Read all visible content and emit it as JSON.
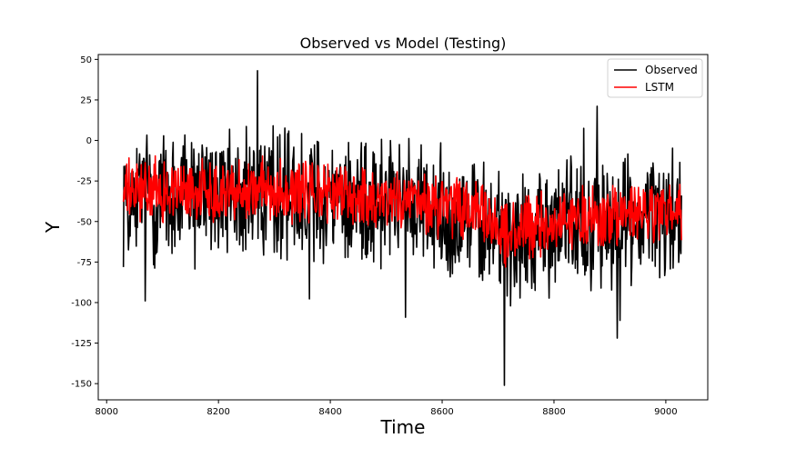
{
  "chart_data": {
    "type": "line",
    "title": "Observed vs Model (Testing)",
    "xlabel": "Time",
    "ylabel": "Y",
    "xlim": [
      7985,
      9075
    ],
    "ylim": [
      -160,
      53
    ],
    "x_ticks": [
      8000,
      8200,
      8400,
      8600,
      8800,
      9000
    ],
    "y_ticks": [
      50,
      25,
      0,
      -25,
      -50,
      -75,
      -100,
      -125,
      -150
    ],
    "legend_position": "top-right",
    "x_range": [
      8030,
      9028
    ],
    "series": [
      {
        "name": "Observed",
        "color": "#000000",
        "stroke_width": 1.6,
        "summary": {
          "min": -151,
          "max": 43
        },
        "anchors": [
          [
            8030,
            -35
          ],
          [
            8300,
            -32
          ],
          [
            8500,
            -38
          ],
          [
            8660,
            -48
          ],
          [
            8720,
            -60
          ],
          [
            8800,
            -52
          ],
          [
            9028,
            -45
          ]
        ],
        "amplitude": 28,
        "points": 1000
      },
      {
        "name": "LSTM",
        "color": "#ff0000",
        "stroke_width": 1.6,
        "anchors": [
          [
            8030,
            -32
          ],
          [
            8300,
            -30
          ],
          [
            8500,
            -36
          ],
          [
            8660,
            -44
          ],
          [
            8720,
            -58
          ],
          [
            8800,
            -50
          ],
          [
            9028,
            -44
          ]
        ],
        "amplitude": 14,
        "points": 1000
      }
    ]
  }
}
